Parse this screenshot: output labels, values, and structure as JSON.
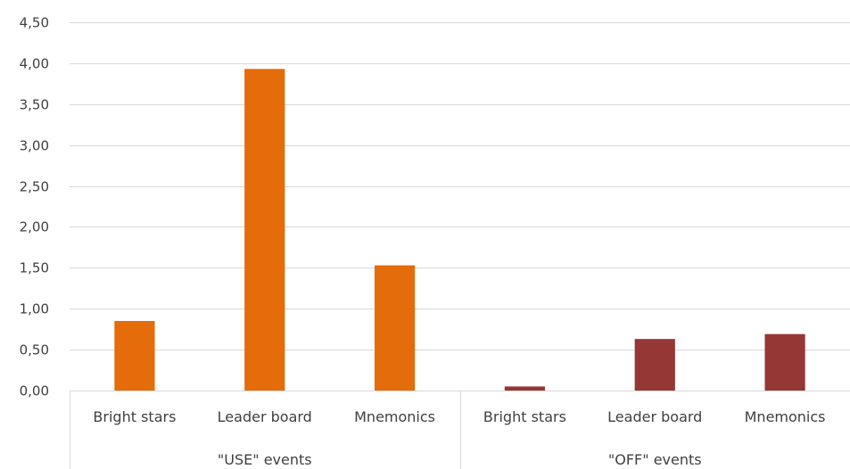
{
  "chart_data": {
    "type": "bar",
    "ylim": [
      0,
      4.5
    ],
    "ytick_step": 0.5,
    "ytick_labels": [
      "0,00",
      "0,50",
      "1,00",
      "1,50",
      "2,00",
      "2,50",
      "3,00",
      "3,50",
      "4,00",
      "4,50"
    ],
    "grid": true,
    "groups": [
      {
        "label": "\"USE\" events",
        "color": "#E46C0A",
        "categories": [
          "Bright stars",
          "Leader board",
          "Mnemonics"
        ],
        "values": [
          0.85,
          3.93,
          1.53
        ]
      },
      {
        "label": "\"OFF\" events",
        "color": "#953735",
        "categories": [
          "Bright stars",
          "Leader board",
          "Mnemonics"
        ],
        "values": [
          0.05,
          0.63,
          0.69
        ]
      }
    ]
  }
}
